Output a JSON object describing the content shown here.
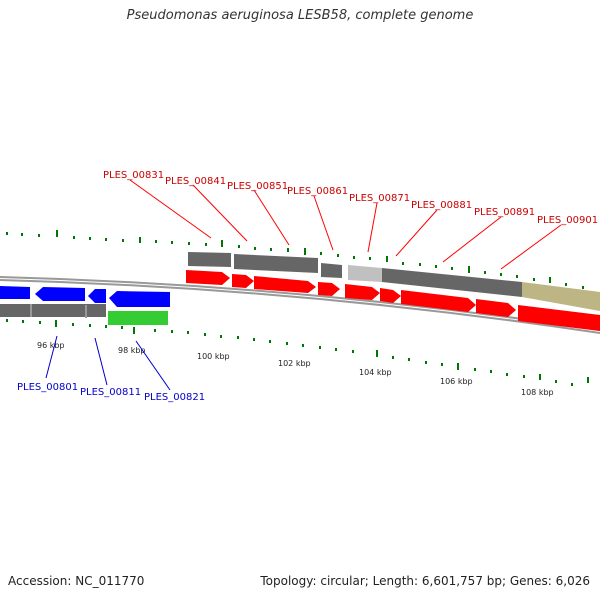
{
  "title": "Pseudomonas aeruginosa LESB58, complete genome",
  "footer": {
    "accession": "Accession: NC_011770",
    "summary": "Topology: circular; Length: 6,601,757 bp; Genes: 6,026"
  },
  "colors": {
    "forward_gene": "#ff0000",
    "reverse_gene": "#0000ff",
    "rna_gene": "#33cc33",
    "annotation_grey": "#666666",
    "annotation_light": "#c0c0c0",
    "annotation_khaki": "#bdb584",
    "gc_skew": "#007700"
  },
  "tick_labels": [
    "96 kbp",
    "98 kbp",
    "100 kbp",
    "102 kbp",
    "104 kbp",
    "106 kbp",
    "108 kbp"
  ],
  "forward_labels": [
    "PLES_00831",
    "PLES_00841",
    "PLES_00851",
    "PLES_00861",
    "PLES_00871",
    "PLES_00881",
    "PLES_00891",
    "PLES_00901"
  ],
  "reverse_labels": [
    "PLES_00801",
    "PLES_00811",
    "PLES_00821"
  ]
}
